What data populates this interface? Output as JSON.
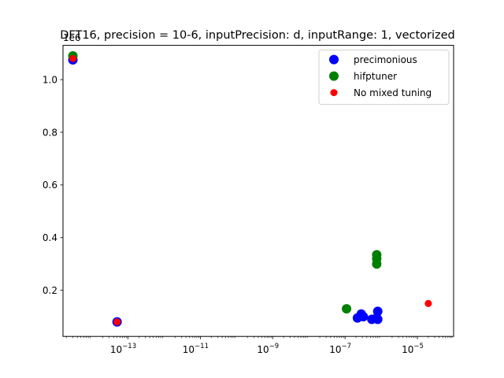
{
  "chart_data": {
    "type": "scatter",
    "title": "DFT16, precision = 10-6, inputPrecision: d, inputRange: 1, vectorized",
    "xlabel": "",
    "ylabel": "",
    "y_offset_label": "1e6",
    "xscale": "log",
    "xlim": [
      1.6e-15,
      0.0001
    ],
    "ylim": [
      25000,
      1130000
    ],
    "xticks": [
      {
        "value": 1e-13,
        "base": "10",
        "exp": "−13"
      },
      {
        "value": 1e-11,
        "base": "10",
        "exp": "−11"
      },
      {
        "value": 1e-09,
        "base": "10",
        "exp": "−9"
      },
      {
        "value": 1e-07,
        "base": "10",
        "exp": "−7"
      },
      {
        "value": 1e-05,
        "base": "10",
        "exp": "−5"
      }
    ],
    "yticks": [
      {
        "value": 200000,
        "label": "0.2"
      },
      {
        "value": 400000,
        "label": "0.4"
      },
      {
        "value": 600000,
        "label": "0.6"
      },
      {
        "value": 800000,
        "label": "0.8"
      },
      {
        "value": 1000000,
        "label": "1.0"
      }
    ],
    "grid": false,
    "legend_position": "top-right",
    "series": [
      {
        "name": "precimonious",
        "color": "#0000ff",
        "marker_size": "large",
        "points": [
          {
            "x": 3e-15,
            "y": 1075000
          },
          {
            "x": 5e-14,
            "y": 80000
          },
          {
            "x": 2.2e-07,
            "y": 95000
          },
          {
            "x": 2.8e-07,
            "y": 110000
          },
          {
            "x": 3.2e-07,
            "y": 100000
          },
          {
            "x": 5.5e-07,
            "y": 90000
          },
          {
            "x": 7.5e-07,
            "y": 95000
          },
          {
            "x": 8e-07,
            "y": 120000
          },
          {
            "x": 8e-07,
            "y": 90000
          }
        ]
      },
      {
        "name": "hifptuner",
        "color": "#008000",
        "marker_size": "large",
        "points": [
          {
            "x": 3e-15,
            "y": 1090000
          },
          {
            "x": 1.1e-07,
            "y": 130000
          },
          {
            "x": 7.5e-07,
            "y": 335000
          },
          {
            "x": 7.5e-07,
            "y": 320000
          },
          {
            "x": 7.5e-07,
            "y": 300000
          }
        ]
      },
      {
        "name": "No mixed tuning",
        "color": "#ff0000",
        "marker_size": "small",
        "points": [
          {
            "x": 3e-15,
            "y": 1080000
          },
          {
            "x": 5e-14,
            "y": 80000
          },
          {
            "x": 2e-05,
            "y": 150000
          }
        ]
      }
    ]
  }
}
